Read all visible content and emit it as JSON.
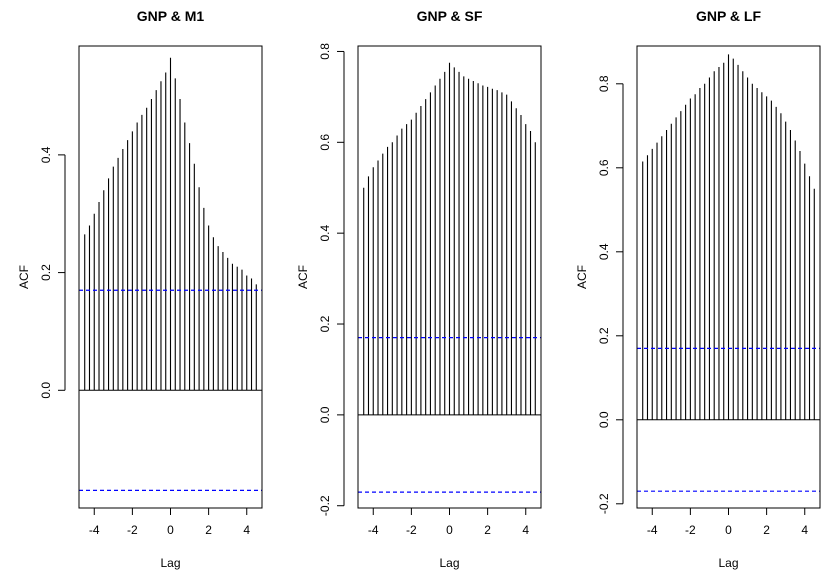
{
  "chart_data": [
    {
      "type": "bar",
      "title": "GNP & M1",
      "xlabel": "Lag",
      "ylabel": "ACF",
      "xlim": [
        -4.8,
        4.8
      ],
      "ylim": [
        -0.2,
        0.585
      ],
      "xticks": [
        -4,
        -2,
        0,
        2,
        4
      ],
      "xtick_labels": [
        "-4",
        "-2",
        "0",
        "2",
        "4"
      ],
      "yticks": [
        0.0,
        0.2,
        0.4
      ],
      "ytick_labels": [
        "0.0",
        "0.2",
        "0.4"
      ],
      "conf_limit": 0.17,
      "lags": [
        -4.5,
        -4.25,
        -4.0,
        -3.75,
        -3.5,
        -3.25,
        -3.0,
        -2.75,
        -2.5,
        -2.25,
        -2.0,
        -1.75,
        -1.5,
        -1.25,
        -1.0,
        -0.75,
        -0.5,
        -0.25,
        0.0,
        0.25,
        0.5,
        0.75,
        1.0,
        1.25,
        1.5,
        1.75,
        2.0,
        2.25,
        2.5,
        2.75,
        3.0,
        3.25,
        3.5,
        3.75,
        4.0,
        4.25,
        4.5
      ],
      "values": [
        0.265,
        0.28,
        0.3,
        0.32,
        0.34,
        0.36,
        0.38,
        0.395,
        0.41,
        0.425,
        0.44,
        0.455,
        0.468,
        0.48,
        0.495,
        0.51,
        0.525,
        0.54,
        0.565,
        0.53,
        0.495,
        0.455,
        0.42,
        0.385,
        0.345,
        0.31,
        0.28,
        0.26,
        0.245,
        0.235,
        0.225,
        0.215,
        0.21,
        0.205,
        0.195,
        0.19,
        0.18
      ]
    },
    {
      "type": "bar",
      "title": "GNP & SF",
      "xlabel": "Lag",
      "ylabel": "ACF",
      "xlim": [
        -4.8,
        4.8
      ],
      "ylim": [
        -0.205,
        0.812
      ],
      "xticks": [
        -4,
        -2,
        0,
        2,
        4
      ],
      "xtick_labels": [
        "-4",
        "-2",
        "0",
        "2",
        "4"
      ],
      "yticks": [
        -0.2,
        0.0,
        0.2,
        0.4,
        0.6,
        0.8
      ],
      "ytick_labels": [
        "-0.2",
        "0.0",
        "0.2",
        "0.4",
        "0.6",
        "0.8"
      ],
      "conf_limit": 0.17,
      "lags": [
        -4.5,
        -4.25,
        -4.0,
        -3.75,
        -3.5,
        -3.25,
        -3.0,
        -2.75,
        -2.5,
        -2.25,
        -2.0,
        -1.75,
        -1.5,
        -1.25,
        -1.0,
        -0.75,
        -0.5,
        -0.25,
        0.0,
        0.25,
        0.5,
        0.75,
        1.0,
        1.25,
        1.5,
        1.75,
        2.0,
        2.25,
        2.5,
        2.75,
        3.0,
        3.25,
        3.5,
        3.75,
        4.0,
        4.25,
        4.5
      ],
      "values": [
        0.5,
        0.525,
        0.545,
        0.56,
        0.575,
        0.59,
        0.6,
        0.615,
        0.63,
        0.64,
        0.65,
        0.665,
        0.68,
        0.695,
        0.71,
        0.725,
        0.74,
        0.755,
        0.775,
        0.765,
        0.755,
        0.745,
        0.74,
        0.735,
        0.73,
        0.725,
        0.722,
        0.718,
        0.715,
        0.71,
        0.705,
        0.69,
        0.675,
        0.66,
        0.64,
        0.625,
        0.6
      ]
    },
    {
      "type": "bar",
      "title": "GNP & LF",
      "xlabel": "Lag",
      "ylabel": "ACF",
      "xlim": [
        -4.8,
        4.8
      ],
      "ylim": [
        -0.21,
        0.89
      ],
      "xticks": [
        -4,
        -2,
        0,
        2,
        4
      ],
      "xtick_labels": [
        "-4",
        "-2",
        "0",
        "2",
        "4"
      ],
      "yticks": [
        -0.2,
        0.0,
        0.2,
        0.4,
        0.6,
        0.8
      ],
      "ytick_labels": [
        "-0.2",
        "0.0",
        "0.2",
        "0.4",
        "0.6",
        "0.8"
      ],
      "conf_limit": 0.17,
      "lags": [
        -4.5,
        -4.25,
        -4.0,
        -3.75,
        -3.5,
        -3.25,
        -3.0,
        -2.75,
        -2.5,
        -2.25,
        -2.0,
        -1.75,
        -1.5,
        -1.25,
        -1.0,
        -0.75,
        -0.5,
        -0.25,
        0.0,
        0.25,
        0.5,
        0.75,
        1.0,
        1.25,
        1.5,
        1.75,
        2.0,
        2.25,
        2.5,
        2.75,
        3.0,
        3.25,
        3.5,
        3.75,
        4.0,
        4.25,
        4.5
      ],
      "values": [
        0.615,
        0.63,
        0.645,
        0.66,
        0.675,
        0.69,
        0.705,
        0.72,
        0.735,
        0.75,
        0.765,
        0.775,
        0.79,
        0.8,
        0.815,
        0.83,
        0.84,
        0.85,
        0.87,
        0.86,
        0.845,
        0.83,
        0.815,
        0.8,
        0.79,
        0.78,
        0.77,
        0.76,
        0.745,
        0.73,
        0.71,
        0.69,
        0.665,
        0.64,
        0.61,
        0.58,
        0.55
      ]
    }
  ]
}
